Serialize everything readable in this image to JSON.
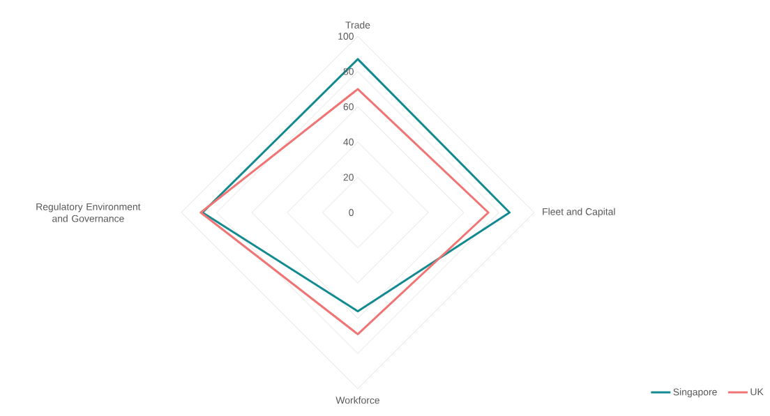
{
  "chart_data": {
    "type": "radar",
    "categories": [
      "Trade",
      "Fleet and Capital",
      "Workforce",
      "Regulatory Environment and Governance"
    ],
    "series": [
      {
        "name": "Singapore",
        "color": "#138a8f",
        "values": [
          87,
          86,
          56,
          88
        ]
      },
      {
        "name": "UK",
        "color": "#f07474",
        "values": [
          70,
          74,
          69,
          89
        ]
      }
    ],
    "ylim": [
      0,
      100
    ],
    "yticks": [
      0,
      20,
      40,
      60,
      80,
      100
    ],
    "grid": true,
    "legend": "bottom right"
  }
}
